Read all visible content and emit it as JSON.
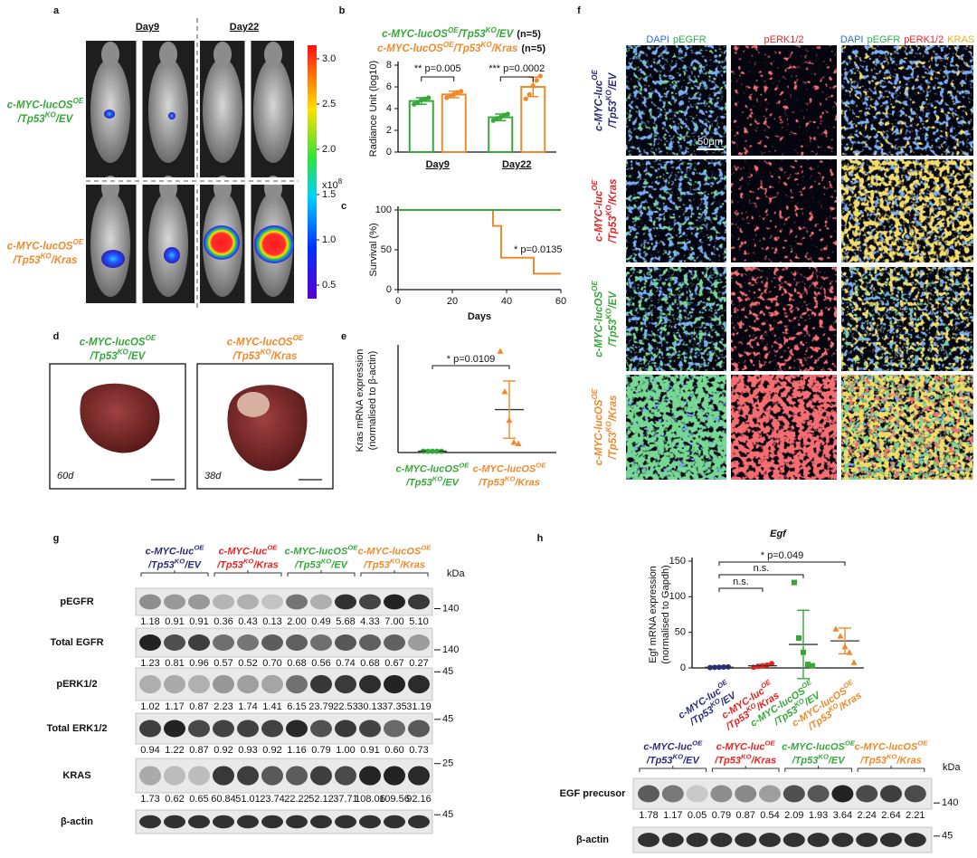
{
  "figure_labels": [
    "a",
    "b",
    "c",
    "d",
    "e",
    "f",
    "g",
    "h"
  ],
  "groups": [
    {
      "parts": [
        "c-MYC-luc",
        "OE",
        "/Tp53",
        "KO",
        "/EV"
      ],
      "color": "#2b2d7a"
    },
    {
      "parts": [
        "c-MYC-luc",
        "OE",
        "/Tp53",
        "KO",
        "/Kras"
      ],
      "color": "#e52421"
    },
    {
      "parts": [
        "c-MYC-lucOS",
        "OE",
        "/Tp53",
        "KO",
        "/EV"
      ],
      "color": "#35a839"
    },
    {
      "parts": [
        "c-MYC-lucOS",
        "OE",
        "/Tp53",
        "KO",
        "/Kras"
      ],
      "color": "#f0892a"
    }
  ],
  "panel_a": {
    "days": [
      "Day9",
      "Day22"
    ],
    "colorbar": {
      "lim": [
        0.35,
        3.15
      ],
      "ticks": [
        {
          "value": 3,
          "label": "3.0"
        },
        2.5,
        {
          "value": 2,
          "label": "2.0"
        },
        1.5,
        {
          "value": 1,
          "label": "1.0"
        },
        0.5
      ],
      "multiplier": "x10",
      "exponent": "8"
    }
  },
  "panel_d": {
    "days": [
      "60d",
      "38d"
    ]
  },
  "panel_f": {
    "headers": [
      [
        {
          "text": "DAPI",
          "color": "#2e6be6"
        },
        {
          "text": "pEGFR",
          "color": "#2fb04a"
        }
      ],
      [
        {
          "text": "pERK1/2",
          "color": "#e8262a"
        }
      ],
      [
        {
          "text": "DAPI",
          "color": "#2e6be6"
        },
        {
          "text": "pEGFR",
          "color": "#2fb04a"
        },
        {
          "text": "pERK1/2",
          "color": "#e8262a"
        },
        {
          "text": "KRAS",
          "color": "#e6b422"
        }
      ]
    ],
    "scale_bar": "50μm"
  },
  "panel_g": {
    "kda": "kDa",
    "rows": [
      {
        "name": "pEGFR",
        "marker": "140",
        "quant": [
          "1.18",
          "0.91",
          "0.91",
          "0.36",
          "0.43",
          "0.13",
          "2.00",
          "0.49",
          "5.68",
          "4.33",
          "7.00",
          "5.10"
        ]
      },
      {
        "name": "Total EGFR",
        "marker": "140",
        "quant": [
          "1.23",
          "0.81",
          "0.96",
          "0.57",
          "0.52",
          "0.70",
          "0.68",
          "0.56",
          "0.74",
          "0.68",
          "0.67",
          "0.27"
        ]
      },
      {
        "name": "pERK1/2",
        "marker": "45",
        "quant": [
          "1.02",
          "1.17",
          "0.87",
          "2.23",
          "1.74",
          "1.41",
          "6.15",
          "23.79",
          "22.53",
          "30.13",
          "37.35",
          "31.19"
        ]
      },
      {
        "name": "Total ERK1/2",
        "marker": "45",
        "quant": [
          "0.94",
          "1.22",
          "0.87",
          "0.92",
          "0.93",
          "0.92",
          "1.16",
          "0.79",
          "1.00",
          "0.91",
          "0.60",
          "0.73"
        ]
      },
      {
        "name": "KRAS",
        "marker": "25",
        "quant": [
          "1.73",
          "0.62",
          "0.65",
          "60.84",
          "51.01",
          "23.74",
          "22.22",
          "52.12",
          "37.71",
          "108.06",
          "109.56",
          "92.16"
        ]
      },
      {
        "name": "β-actin",
        "marker": "45"
      }
    ]
  },
  "panel_h_blot": {
    "kda": "kDa",
    "rows": [
      {
        "name": "EGF precusor",
        "marker": "140",
        "quant": [
          "1.78",
          "1.17",
          "0.05",
          "0.79",
          "0.87",
          "0.54",
          "2.09",
          "1.93",
          "3.64",
          "2.24",
          "2.64",
          "2.21"
        ]
      },
      {
        "name": "β-actin",
        "marker": "45"
      }
    ]
  },
  "chart_data": [
    {
      "type": "bar",
      "categories": [
        "Day9",
        "Day22"
      ],
      "ylabel": "Radiance Unit (log10)",
      "ylim": [
        0,
        8
      ],
      "yticks": [
        0,
        2,
        4,
        6,
        8
      ],
      "annotations": [
        "** p=0.005",
        "*** p=0.0002"
      ],
      "series": [
        {
          "name": [
            "c-MYC-lucOS",
            "OE",
            "/Tp53",
            "KO",
            "/EV"
          ],
          "n": "(n=5)",
          "color": "#35a839",
          "values": [
            4.7,
            3.2
          ],
          "errors": [
            0.3,
            0.3
          ],
          "points": [
            [
              4.4,
              4.6,
              4.8,
              4.9,
              5.0
            ],
            [
              2.9,
              3.1,
              3.2,
              3.4,
              3.5
            ]
          ]
        },
        {
          "name": [
            "c-MYC-lucOS",
            "OE",
            "/Tp53",
            "KO",
            "/Kras"
          ],
          "n": "(n=5)",
          "color": "#f0892a",
          "values": [
            5.3,
            6.0
          ],
          "errors": [
            0.3,
            0.9
          ],
          "points": [
            [
              5.0,
              5.2,
              5.3,
              5.5,
              5.6
            ],
            [
              4.9,
              5.3,
              6.1,
              6.6,
              7.0
            ]
          ]
        }
      ]
    },
    {
      "type": "line",
      "xlabel": "Days",
      "ylabel": "Survival (%)",
      "xlim": [
        0,
        60
      ],
      "xticks": [
        0,
        20,
        40,
        60
      ],
      "ylim": [
        0,
        100
      ],
      "yticks": [
        0,
        50,
        100
      ],
      "annotations": [
        "* p=0.0135"
      ],
      "series": [
        {
          "color": "#f0892a",
          "x": [
            0,
            35,
            35,
            38,
            38,
            50,
            50,
            60
          ],
          "values": [
            100,
            100,
            80,
            80,
            40,
            40,
            20,
            20
          ]
        },
        {
          "color": "#35a839",
          "x": [
            0,
            60
          ],
          "values": [
            100,
            100
          ]
        }
      ]
    },
    {
      "type": "dot",
      "ylabel": [
        "Kras mRNA expression",
        "(normalised to β-actin)"
      ],
      "ylim": [
        0,
        80
      ],
      "annotations": [
        "* p=0.0109"
      ],
      "series": [
        {
          "name": [
            "c-MYC-lucOS",
            "OE",
            "/Tp53",
            "KO",
            "/EV"
          ],
          "color": "#35a839",
          "marker": "circle",
          "values": [
            1,
            1,
            1,
            1,
            1
          ],
          "mean": 1,
          "error": 0.3
        },
        {
          "name": [
            "c-MYC-lucOS",
            "OE",
            "/Tp53",
            "KO",
            "/Kras"
          ],
          "color": "#f0892a",
          "marker": "triangle",
          "values": [
            78,
            47,
            25,
            8,
            7
          ],
          "mean": 33,
          "error": 22
        }
      ]
    },
    {
      "type": "dot",
      "title": "Egf",
      "ylabel": [
        "Egf mRNA expression",
        "(normalised to Gapdh)"
      ],
      "ylim": [
        0,
        150
      ],
      "yticks": [
        0,
        50,
        100,
        150
      ],
      "annotations": [
        "* p=0.049",
        "n.s.",
        "n.s."
      ],
      "series": [
        {
          "name": [
            "c-MYC-luc",
            "OE",
            "/Tp53",
            "KO",
            "/EV"
          ],
          "color": "#2b2d7a",
          "marker": "circle",
          "values": [
            0.5,
            0.8,
            1,
            1.2,
            1.5
          ],
          "mean": 1,
          "error": 0.5
        },
        {
          "name": [
            "c-MYC-luc",
            "OE",
            "/Tp53",
            "KO",
            "/Kras"
          ],
          "color": "#e52421",
          "marker": "circle",
          "values": [
            1,
            2,
            3,
            4,
            6
          ],
          "mean": 3,
          "error": 2
        },
        {
          "name": [
            "c-MYC-lucOS",
            "OE",
            "/Tp53",
            "KO",
            "/EV"
          ],
          "color": "#35a839",
          "marker": "square",
          "values": [
            120,
            42,
            22,
            5,
            3
          ],
          "mean": 33,
          "error": 48
        },
        {
          "name": [
            "c-MYC-lucOS",
            "OE",
            "/Tp53",
            "KO",
            "/Kras"
          ],
          "color": "#f0892a",
          "marker": "triangle",
          "values": [
            55,
            45,
            30,
            22,
            8
          ],
          "mean": 38,
          "error": 18
        }
      ]
    }
  ]
}
